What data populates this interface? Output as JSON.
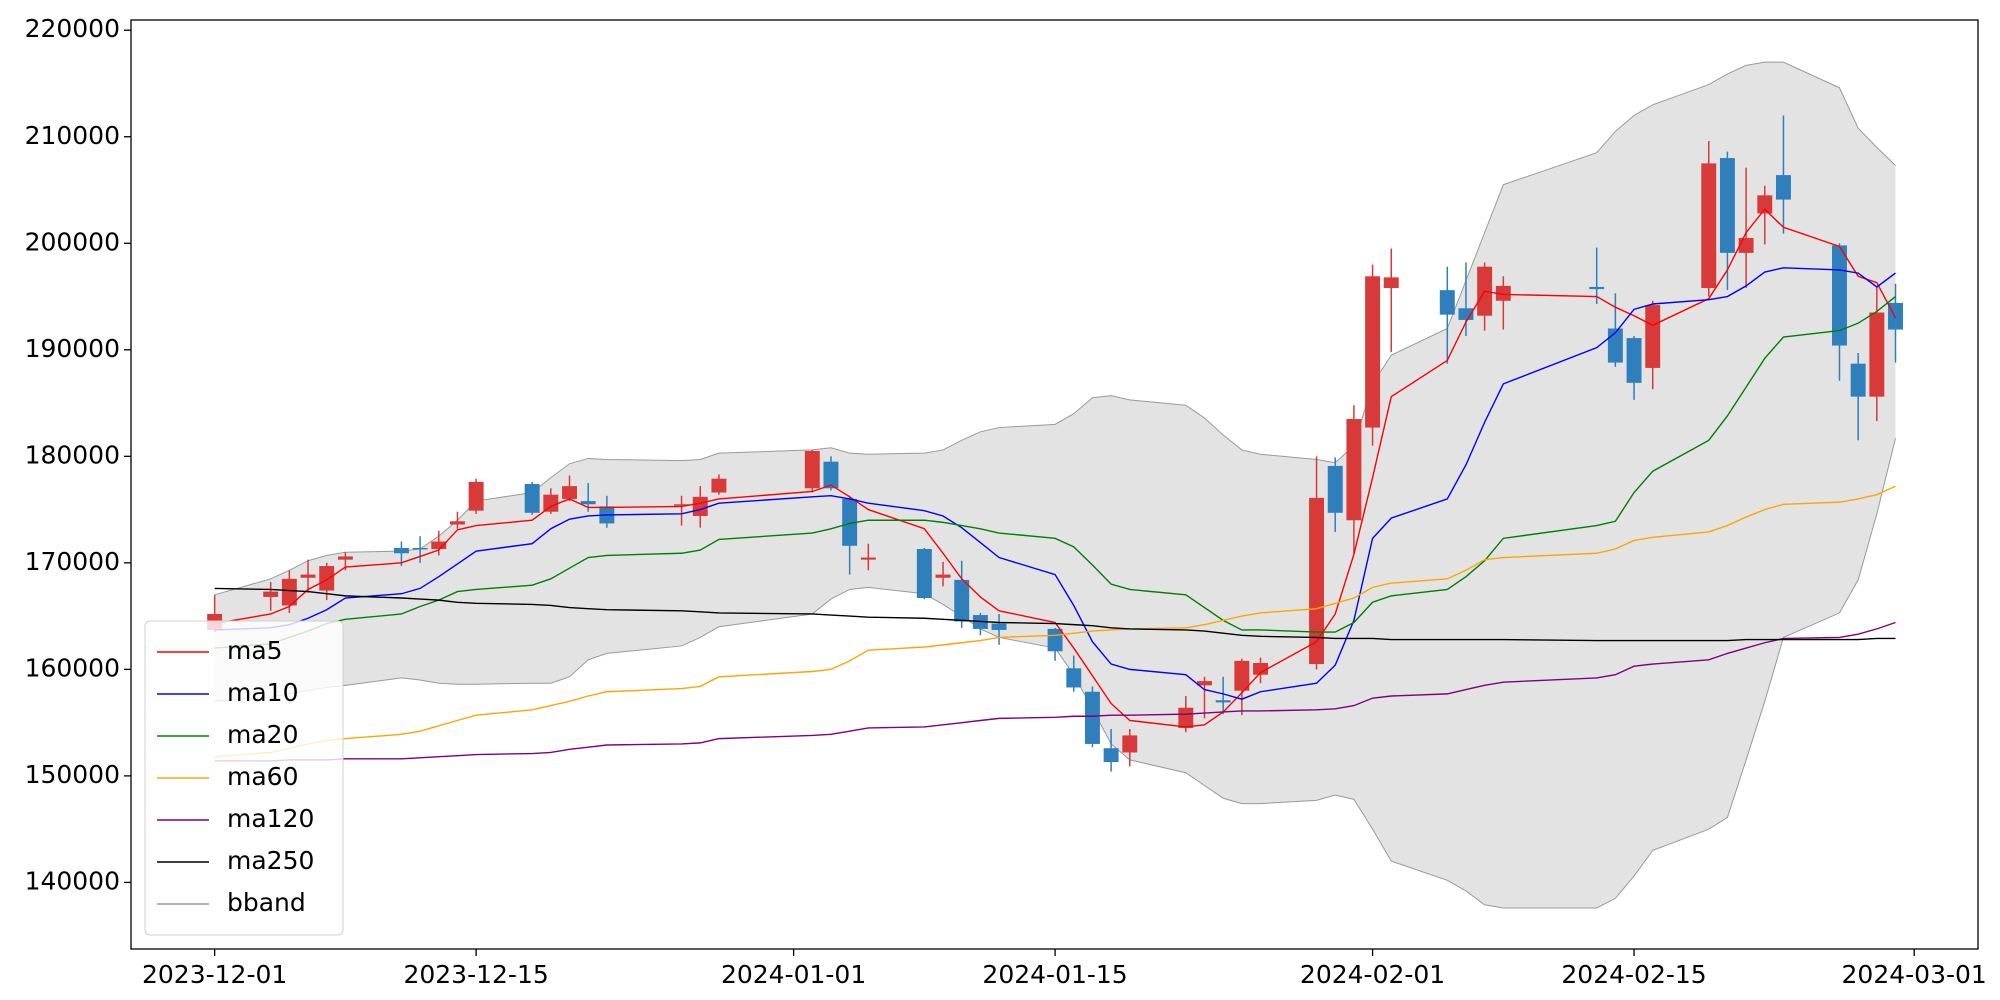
{
  "chart_data": {
    "type": "candlestick",
    "x": [
      "2023-12-01",
      "2023-12-04",
      "2023-12-05",
      "2023-12-06",
      "2023-12-07",
      "2023-12-08",
      "2023-12-11",
      "2023-12-12",
      "2023-12-13",
      "2023-12-14",
      "2023-12-15",
      "2023-12-18",
      "2023-12-19",
      "2023-12-20",
      "2023-12-21",
      "2023-12-22",
      "2023-12-26",
      "2023-12-27",
      "2023-12-28",
      "2024-01-02",
      "2024-01-03",
      "2024-01-04",
      "2024-01-05",
      "2024-01-08",
      "2024-01-09",
      "2024-01-10",
      "2024-01-11",
      "2024-01-12",
      "2024-01-15",
      "2024-01-16",
      "2024-01-17",
      "2024-01-18",
      "2024-01-19",
      "2024-01-22",
      "2024-01-23",
      "2024-01-24",
      "2024-01-25",
      "2024-01-26",
      "2024-01-29",
      "2024-01-30",
      "2024-01-31",
      "2024-02-01",
      "2024-02-02",
      "2024-02-05",
      "2024-02-06",
      "2024-02-07",
      "2024-02-08",
      "2024-02-13",
      "2024-02-14",
      "2024-02-15",
      "2024-02-16",
      "2024-02-19",
      "2024-02-20",
      "2024-02-21",
      "2024-02-22",
      "2024-02-23",
      "2024-02-26",
      "2024-02-27",
      "2024-02-28",
      "2024-02-29"
    ],
    "open": [
      163700,
      166800,
      166000,
      168600,
      167400,
      170300,
      171400,
      171400,
      171300,
      173600,
      174900,
      177400,
      174800,
      176000,
      175800,
      175300,
      175400,
      174400,
      176600,
      177000,
      179500,
      176000,
      170300,
      171300,
      168600,
      168400,
      165100,
      164300,
      163800,
      160100,
      157900,
      152600,
      152200,
      154500,
      158500,
      157100,
      158000,
      159500,
      160500,
      179100,
      174000,
      182700,
      195800,
      195600,
      193900,
      193200,
      194600,
      195900,
      192000,
      191100,
      188300,
      195800,
      208000,
      199100,
      202800,
      206400,
      199800,
      188700,
      185600,
      194400
    ],
    "high": [
      167000,
      168200,
      169300,
      170300,
      170000,
      171000,
      172000,
      172500,
      173000,
      174800,
      177900,
      177600,
      177000,
      178200,
      177500,
      176300,
      176300,
      177200,
      178300,
      180600,
      180000,
      176300,
      171800,
      171400,
      170100,
      170200,
      165300,
      165200,
      163900,
      161300,
      158400,
      154400,
      154400,
      157500,
      159300,
      159300,
      161000,
      161100,
      180000,
      179900,
      184800,
      198000,
      199500,
      197800,
      198200,
      198200,
      196900,
      199600,
      195300,
      191300,
      194600,
      209600,
      208600,
      207100,
      205400,
      212000,
      200000,
      189700,
      196000,
      196200
    ],
    "low": [
      163500,
      165500,
      165300,
      167200,
      166500,
      169300,
      169700,
      170000,
      170700,
      173200,
      174600,
      174500,
      174600,
      175800,
      174800,
      173300,
      173500,
      173300,
      176400,
      176600,
      176800,
      168900,
      169300,
      166600,
      167800,
      163900,
      163200,
      162300,
      160800,
      157900,
      152700,
      150400,
      150900,
      154100,
      155400,
      155800,
      155700,
      158700,
      160000,
      172900,
      170900,
      181000,
      189800,
      188700,
      191300,
      191800,
      191900,
      194300,
      188400,
      185300,
      186300,
      195000,
      195600,
      195800,
      199900,
      200900,
      187100,
      181500,
      183300,
      188800
    ],
    "close": [
      165200,
      167300,
      168500,
      168900,
      169700,
      170600,
      170900,
      171300,
      172000,
      173900,
      177600,
      174700,
      176400,
      177200,
      175500,
      173700,
      175500,
      176200,
      177900,
      180500,
      177000,
      171600,
      170500,
      166700,
      168900,
      164500,
      163800,
      163700,
      161700,
      158300,
      153000,
      151300,
      153800,
      156400,
      158900,
      156900,
      160800,
      160600,
      176100,
      174700,
      183500,
      196900,
      196800,
      193300,
      192800,
      197800,
      196000,
      195700,
      188800,
      186900,
      194200,
      207500,
      199100,
      200500,
      204500,
      204100,
      190400,
      185600,
      193500,
      191900
    ],
    "up_color": "#d83a3a",
    "down_color": "#2f7fbd",
    "series": [
      {
        "name": "ma5",
        "color": "#ff0000",
        "values": [
          164300,
          165200,
          165900,
          167500,
          168400,
          169600,
          170000,
          170600,
          171200,
          173100,
          173500,
          174000,
          175300,
          176000,
          175200,
          175200,
          175300,
          175600,
          176000,
          176700,
          177300,
          176200,
          175000,
          173200,
          170900,
          168500,
          166800,
          165500,
          164400,
          162000,
          159400,
          156800,
          155200,
          154600,
          154800,
          156000,
          157800,
          159700,
          162600,
          165200,
          170800,
          178000,
          185600,
          189000,
          192600,
          195500,
          195200,
          195000,
          194000,
          193200,
          192300,
          194800,
          197500,
          201000,
          203200,
          201500,
          199700,
          196900,
          196300,
          193000
        ]
      },
      {
        "name": "ma10",
        "color": "#0000ff",
        "values": [
          163700,
          163900,
          164200,
          164800,
          165600,
          166700,
          167100,
          167600,
          168700,
          169900,
          171100,
          171800,
          173200,
          174100,
          174400,
          174500,
          174600,
          175000,
          175600,
          176200,
          176300,
          176000,
          175600,
          174900,
          174400,
          173300,
          171900,
          170500,
          168900,
          166000,
          162600,
          160500,
          160000,
          159500,
          158100,
          157700,
          157200,
          157900,
          158700,
          160400,
          164600,
          172300,
          174200,
          176000,
          179200,
          183200,
          186800,
          190200,
          191600,
          193800,
          194300,
          194700,
          195000,
          196000,
          197300,
          197700,
          197500,
          197200,
          195900,
          197200
        ]
      },
      {
        "name": "ma20",
        "color": "#008000",
        "values": [
          162000,
          162400,
          163000,
          163600,
          164300,
          164700,
          165200,
          165900,
          166500,
          167300,
          167500,
          167900,
          168500,
          169500,
          170500,
          170700,
          170900,
          171200,
          172200,
          172800,
          173200,
          173700,
          174000,
          174000,
          173800,
          173500,
          173200,
          172800,
          172300,
          171500,
          169800,
          168000,
          167500,
          167000,
          165800,
          164600,
          163700,
          163700,
          163500,
          163500,
          164400,
          166300,
          166900,
          167500,
          168700,
          170200,
          172300,
          173500,
          173900,
          176600,
          178600,
          181500,
          183800,
          186500,
          189200,
          191200,
          191800,
          192500,
          193600,
          195000
        ]
      },
      {
        "name": "ma60",
        "color": "#ffa500",
        "values": [
          151800,
          152200,
          152600,
          153000,
          153300,
          153500,
          153900,
          154200,
          154700,
          155200,
          155700,
          156200,
          156600,
          157000,
          157500,
          157900,
          158200,
          158400,
          159300,
          159800,
          160000,
          160800,
          161800,
          162100,
          162300,
          162500,
          162700,
          163000,
          163200,
          163400,
          163600,
          163700,
          163800,
          163900,
          164200,
          164600,
          165000,
          165300,
          165700,
          166200,
          166700,
          167700,
          168100,
          168500,
          169300,
          170300,
          170500,
          170900,
          171300,
          172100,
          172400,
          172900,
          173500,
          174300,
          175000,
          175500,
          175700,
          176000,
          176400,
          177200
        ]
      },
      {
        "name": "ma120",
        "color": "#800080",
        "values": [
          151400,
          151400,
          151500,
          151500,
          151500,
          151600,
          151600,
          151700,
          151800,
          151900,
          152000,
          152100,
          152200,
          152500,
          152700,
          152900,
          153000,
          153100,
          153500,
          153800,
          153900,
          154200,
          154500,
          154600,
          154800,
          155000,
          155200,
          155400,
          155500,
          155600,
          155600,
          155700,
          155700,
          155800,
          155900,
          156000,
          156100,
          156100,
          156200,
          156300,
          156600,
          157300,
          157500,
          157700,
          158100,
          158500,
          158800,
          159200,
          159500,
          160300,
          160500,
          160900,
          161500,
          162000,
          162500,
          162900,
          163000,
          163300,
          163800,
          164400
        ]
      },
      {
        "name": "ma250",
        "color": "#000000",
        "values": [
          167600,
          167500,
          167400,
          167300,
          167100,
          166900,
          166700,
          166600,
          166500,
          166300,
          166200,
          166100,
          166000,
          165800,
          165700,
          165600,
          165500,
          165400,
          165300,
          165200,
          165100,
          165000,
          164900,
          164800,
          164700,
          164600,
          164500,
          164400,
          164300,
          164200,
          164100,
          163900,
          163800,
          163700,
          163600,
          163400,
          163200,
          163100,
          163000,
          162900,
          162900,
          162900,
          162800,
          162800,
          162800,
          162800,
          162800,
          162700,
          162700,
          162700,
          162700,
          162700,
          162700,
          162800,
          162800,
          162800,
          162800,
          162800,
          162900,
          162900
        ]
      },
      {
        "name": "bband",
        "color": "#9a9a9a",
        "fill": "#e3e3e3",
        "upper": [
          167000,
          168500,
          169300,
          170200,
          170700,
          171000,
          171100,
          171300,
          172500,
          174000,
          175800,
          176600,
          178000,
          179300,
          179800,
          179700,
          179600,
          179700,
          180300,
          180600,
          180800,
          180300,
          180200,
          180300,
          180600,
          181500,
          182300,
          182700,
          183000,
          184000,
          185500,
          185700,
          185300,
          184800,
          183600,
          182000,
          180600,
          180200,
          179700,
          179400,
          181000,
          186800,
          189500,
          192000,
          196500,
          201000,
          205500,
          208500,
          210500,
          212000,
          213000,
          214900,
          215900,
          216700,
          217000,
          217000,
          214600,
          210800,
          209000,
          207300
        ],
        "lower": [
          157000,
          157400,
          157700,
          158000,
          158300,
          158500,
          159200,
          159000,
          158700,
          158600,
          158600,
          158700,
          158700,
          159300,
          160900,
          161500,
          162200,
          163000,
          164000,
          165200,
          166600,
          167500,
          167700,
          167100,
          166100,
          165000,
          163800,
          163000,
          162000,
          159500,
          156300,
          153000,
          151500,
          150300,
          149100,
          147900,
          147400,
          147400,
          147700,
          148200,
          147800,
          145000,
          142000,
          140200,
          139200,
          137900,
          137600,
          137600,
          138500,
          140600,
          143000,
          145000,
          146100,
          151500,
          157000,
          163000,
          165300,
          168400,
          174600,
          181700
        ]
      }
    ],
    "xlim": [
      "2023-11-26T12:30Z",
      "2024-03-04T10:00Z"
    ],
    "ylim": [
      133750,
      220960
    ],
    "xticks": [
      "2023-12-01",
      "2023-12-15",
      "2024-01-01",
      "2024-01-15",
      "2024-02-01",
      "2024-02-15",
      "2024-03-01"
    ],
    "yticks": [
      140000,
      150000,
      160000,
      170000,
      180000,
      190000,
      200000,
      210000,
      220000
    ],
    "legend": "lower left"
  }
}
